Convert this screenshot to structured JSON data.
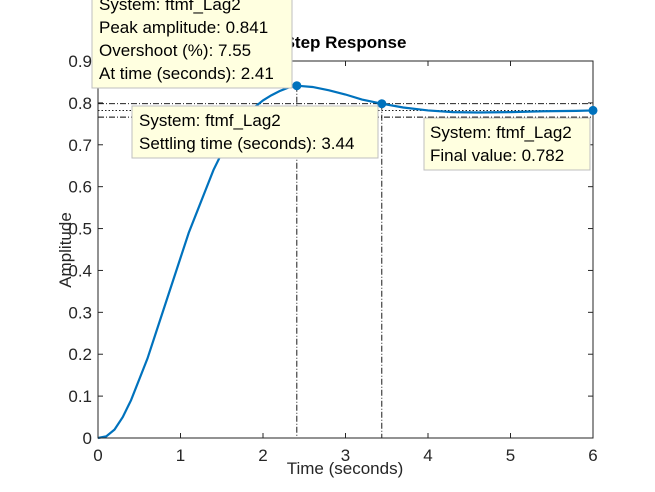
{
  "chart_data": {
    "type": "line",
    "title": "Step Response",
    "xlabel": "Time (seconds)",
    "ylabel": "Amplitude",
    "xlim": [
      0,
      6
    ],
    "ylim": [
      0,
      0.9
    ],
    "x_ticks": [
      "0",
      "1",
      "2",
      "3",
      "4",
      "5",
      "6"
    ],
    "y_ticks": [
      "0",
      "0.1",
      "0.2",
      "0.3",
      "0.4",
      "0.5",
      "0.6",
      "0.7",
      "0.8",
      "0.9"
    ],
    "grid": false,
    "series": [
      {
        "name": "ftmf_Lag2",
        "color": "#0072BD",
        "x": [
          0,
          0.1,
          0.2,
          0.3,
          0.4,
          0.5,
          0.6,
          0.7,
          0.8,
          0.9,
          1.0,
          1.1,
          1.2,
          1.3,
          1.4,
          1.5,
          1.6,
          1.7,
          1.8,
          1.9,
          2.0,
          2.1,
          2.2,
          2.3,
          2.41,
          2.6,
          2.8,
          3.0,
          3.2,
          3.44,
          3.7,
          4.0,
          4.3,
          4.6,
          5.0,
          5.4,
          5.8,
          6.0
        ],
        "y": [
          0,
          0.004,
          0.02,
          0.05,
          0.09,
          0.14,
          0.19,
          0.25,
          0.31,
          0.37,
          0.43,
          0.49,
          0.54,
          0.59,
          0.64,
          0.68,
          0.71,
          0.745,
          0.77,
          0.79,
          0.806,
          0.818,
          0.828,
          0.836,
          0.841,
          0.838,
          0.83,
          0.82,
          0.808,
          0.798,
          0.789,
          0.782,
          0.778,
          0.777,
          0.778,
          0.78,
          0.781,
          0.782
        ]
      }
    ],
    "markers": {
      "peak": {
        "x": 2.41,
        "y": 0.841
      },
      "settling": {
        "x": 3.44,
        "y": 0.798
      },
      "final": {
        "x": 6,
        "y": 0.782
      }
    },
    "reference_lines": {
      "peak_level": 0.841,
      "settling_upper": 0.798,
      "settling_lower": 0.766,
      "final_value": 0.782
    },
    "annotations": {
      "peak": {
        "lines": [
          "System: ftmf_Lag2",
          "Peak amplitude: 0.841",
          "Overshoot (%): 7.55",
          "At time (seconds): 2.41"
        ]
      },
      "settling": {
        "lines": [
          "System: ftmf_Lag2",
          "Settling time (seconds): 3.44"
        ]
      },
      "final": {
        "lines": [
          "System: ftmf_Lag2",
          "Final value: 0.782"
        ]
      }
    },
    "colors": {
      "line": "#0072BD",
      "datatip_bg": "#FFFFE0",
      "axis": "#262626"
    }
  }
}
